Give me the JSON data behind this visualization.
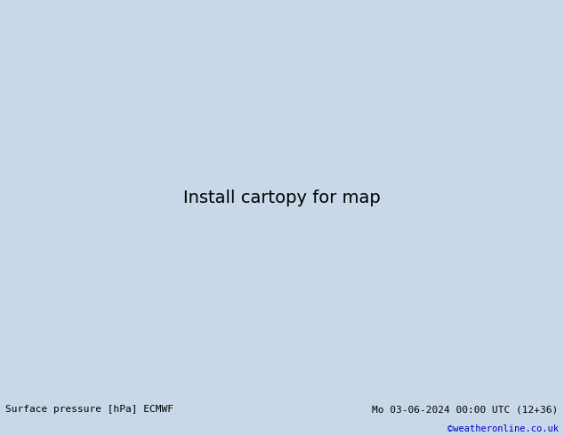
{
  "title_left": "Surface pressure [hPa] ECMWF",
  "title_right": "Mo 03-06-2024 00:00 UTC (12+36)",
  "credit": "©weatheronline.co.uk",
  "credit_color": "#0000cc",
  "bg_color": "#c8d8e8",
  "land_color": "#a8d888",
  "border_color": "#888888",
  "text_color": "#000000",
  "fig_width": 6.34,
  "fig_height": 4.9,
  "dpi": 100,
  "bottom_bar_color": "#d8d8d8",
  "isobar_blue_color": "#0000cc",
  "isobar_red_color": "#cc0000",
  "isobar_black_color": "#000000",
  "lon_min": 80,
  "lon_max": 210,
  "lat_min": -75,
  "lat_max": 12
}
